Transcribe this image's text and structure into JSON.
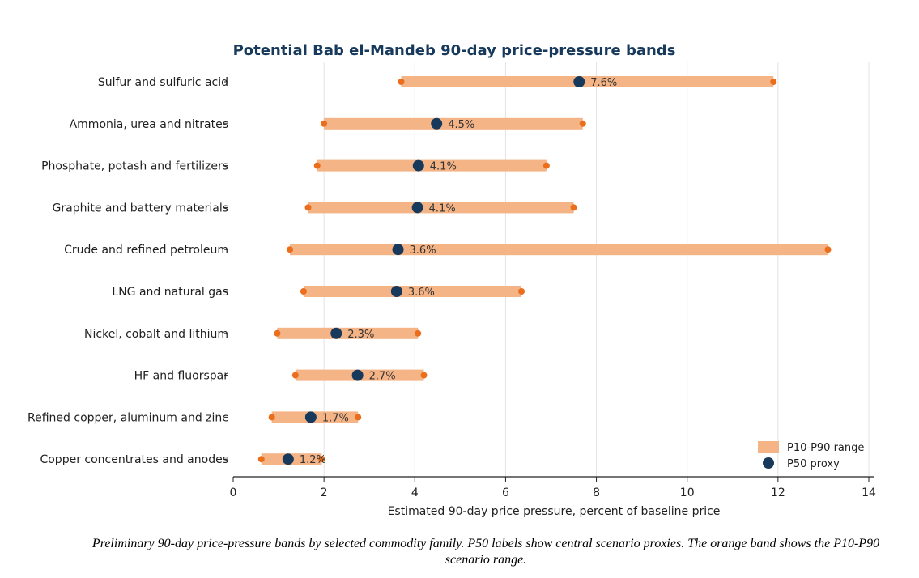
{
  "chart_data": {
    "type": "range",
    "title": "Potential Bab el-Mandeb 90-day price-pressure bands",
    "xlabel": "Estimated 90-day price pressure, percent of baseline price",
    "ylabel": "",
    "xlim": [
      0,
      14
    ],
    "xticks": [
      "0",
      "2",
      "4",
      "6",
      "8",
      "10",
      "12",
      "14"
    ],
    "grid": "vertical",
    "legend_position": "bottom-right",
    "legend": [
      {
        "name": "P10-P90 range",
        "color": "#f5b486"
      },
      {
        "name": "P50 proxy",
        "color": "#17395c"
      }
    ],
    "colors": {
      "band": "#f5b486",
      "endpoint": "#ea6e1c",
      "p50": "#17395c"
    },
    "categories": [
      "Sulfur and sulfuric acid",
      "Ammonia, urea and nitrates",
      "Phosphate, potash and fertilizers",
      "Graphite and battery materials",
      "Crude and refined petroleum",
      "LNG and natural gas",
      "Nickel, cobalt and lithium",
      "HF and fluorspar",
      "Refined copper, aluminum and zinc",
      "Copper concentrates and anodes"
    ],
    "p10": [
      3.7,
      2.0,
      1.85,
      1.65,
      1.25,
      1.55,
      0.97,
      1.37,
      0.85,
      0.62
    ],
    "p90": [
      11.9,
      7.7,
      6.9,
      7.5,
      13.1,
      6.35,
      4.07,
      4.2,
      2.75,
      1.95
    ],
    "p50": [
      7.62,
      4.48,
      4.08,
      4.06,
      3.63,
      3.6,
      2.27,
      2.74,
      1.71,
      1.21
    ],
    "p50_labels": [
      "7.6%",
      "4.5%",
      "4.1%",
      "4.1%",
      "3.6%",
      "3.6%",
      "2.3%",
      "2.7%",
      "1.7%",
      "1.2%"
    ]
  },
  "caption": "Preliminary 90-day price-pressure bands by selected commodity family. P50 labels show central scenario proxies. The orange band shows the P10-P90 scenario range."
}
